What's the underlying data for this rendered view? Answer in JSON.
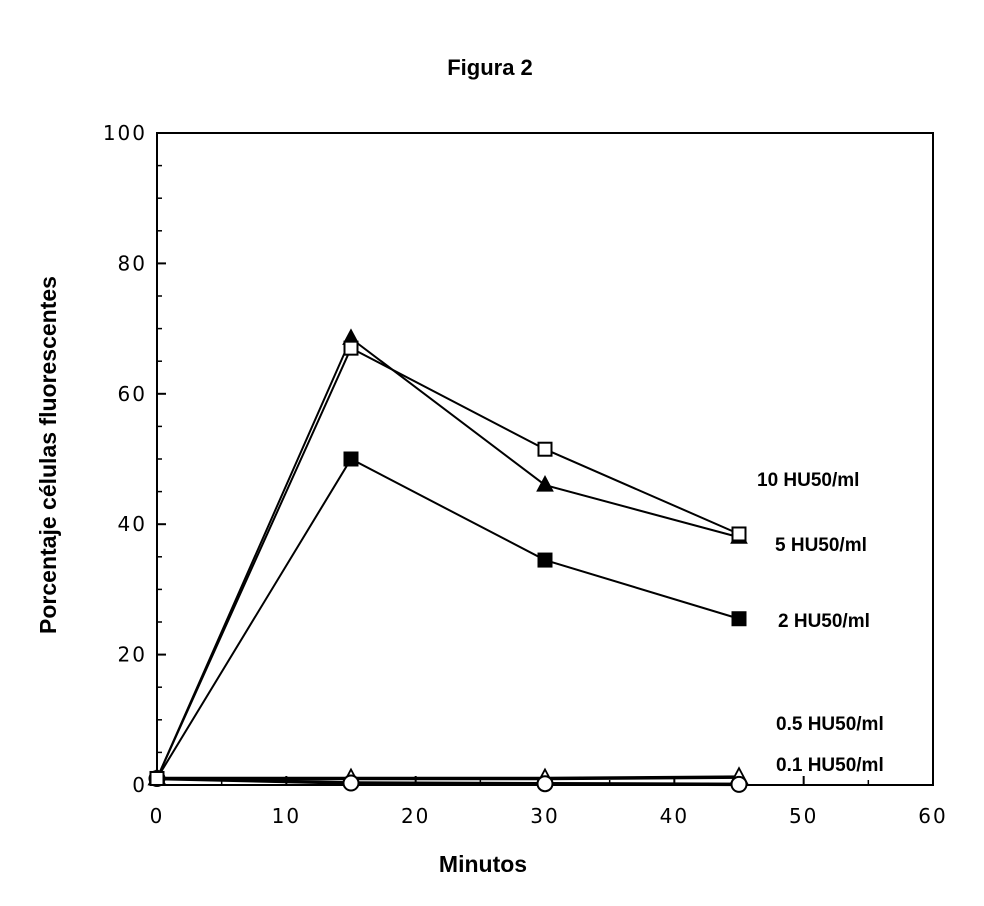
{
  "chart_data": {
    "type": "line",
    "title": "Figura 2",
    "xlabel": "Minutos",
    "ylabel": "Porcentaje células fluorescentes",
    "xlim": [
      0,
      60
    ],
    "ylim": [
      0,
      100
    ],
    "xticks": [
      "0",
      "10",
      "20",
      "30",
      "40",
      "50",
      "60"
    ],
    "yticks": [
      "0",
      "20",
      "40",
      "60",
      "80",
      "100"
    ],
    "grid": false,
    "legend": "series labels at right end of lines",
    "x": [
      0,
      15,
      30,
      45
    ],
    "series": [
      {
        "name": "10 HU50/ml",
        "marker": "open-square",
        "values": [
          1,
          67,
          51.5,
          38.5
        ]
      },
      {
        "name": "5 HU50/ml",
        "marker": "filled-triangle",
        "values": [
          1,
          68.5,
          46,
          38
        ]
      },
      {
        "name": "2 HU50/ml",
        "marker": "filled-square",
        "values": [
          1,
          50,
          34.5,
          25.5
        ]
      },
      {
        "name": "0.5 HU50/ml",
        "marker": "open-triangle",
        "values": [
          1,
          1,
          1,
          1.2
        ]
      },
      {
        "name": "0.1 HU50/ml",
        "marker": "open-circle",
        "values": [
          1,
          0.3,
          0.2,
          0.1
        ]
      }
    ]
  }
}
